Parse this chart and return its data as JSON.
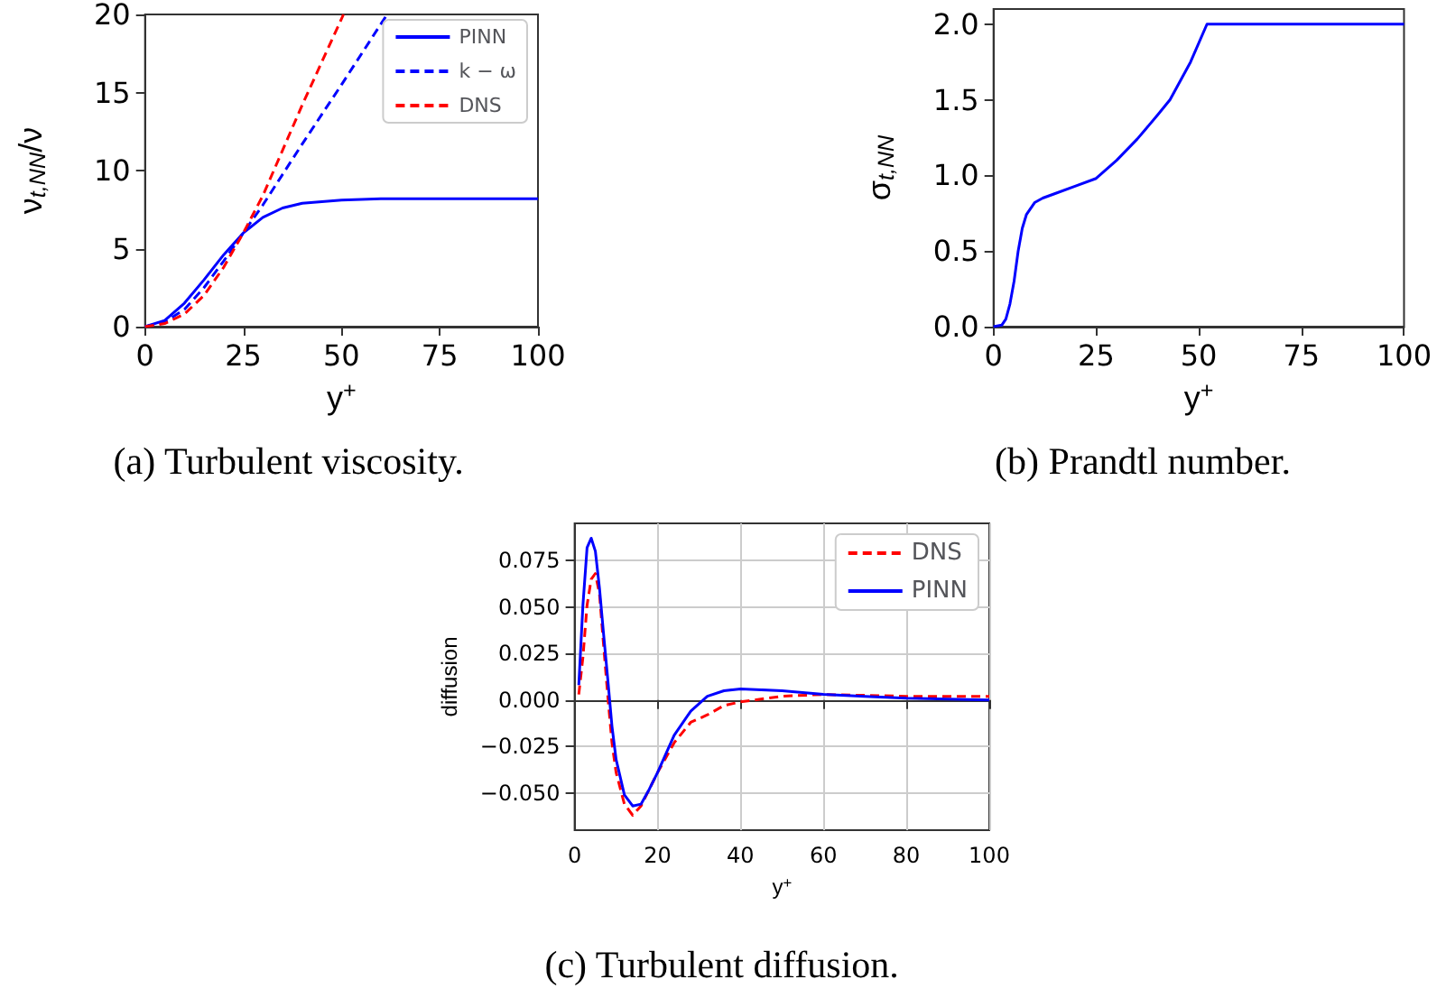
{
  "chart_data": [
    {
      "type": "line",
      "xlabel": "y$^{+}$",
      "ylabel": "ν$_{t,NN}$/ν",
      "xlim": [
        0,
        100
      ],
      "ylim": [
        0,
        20
      ],
      "xticks": [
        0,
        25,
        50,
        75,
        100
      ],
      "yticks": [
        0,
        5,
        10,
        15,
        20
      ],
      "grid": false,
      "legend": "top right",
      "marker": "none",
      "annotations": [
        "(a) Turbulent viscosity."
      ],
      "series": [
        {
          "name": "PINN",
          "color": "#0000ff",
          "line_style": "solid",
          "x": [
            0,
            5,
            10,
            15,
            20,
            25,
            30,
            35,
            40,
            50,
            60,
            75,
            100
          ],
          "values": [
            0,
            0.4,
            1.5,
            3,
            4.6,
            6,
            7,
            7.6,
            7.9,
            8.1,
            8.2,
            8.2,
            8.2
          ]
        },
        {
          "name": "k − ω",
          "color": "#0000ff",
          "line_style": "dashed",
          "x": [
            0,
            5,
            10,
            15,
            20,
            25,
            30,
            40,
            50,
            61.6
          ],
          "values": [
            0,
            0.3,
            1.1,
            2.5,
            4.2,
            6,
            7.8,
            11.7,
            15.5,
            20
          ]
        },
        {
          "name": "DNS",
          "color": "#ff0000",
          "line_style": "dashed",
          "x": [
            0,
            5,
            10,
            15,
            20,
            25,
            30,
            40,
            50.5
          ],
          "values": [
            0,
            0.2,
            0.8,
            2,
            3.8,
            6,
            8.4,
            14.2,
            20
          ]
        }
      ]
    },
    {
      "type": "line",
      "xlabel": "y$^{+}$",
      "ylabel": "σ$_{t,NN}$",
      "xlim": [
        0,
        100
      ],
      "ylim": [
        0,
        2.1
      ],
      "xticks": [
        0,
        25,
        50,
        75,
        100
      ],
      "yticks": [
        {
          "value": 0,
          "label": "0.0"
        },
        {
          "value": 0.5,
          "label": "0.5"
        },
        {
          "value": 1,
          "label": "1.0"
        },
        {
          "value": 1.5,
          "label": "1.5"
        },
        {
          "value": 2,
          "label": "2.0"
        }
      ],
      "grid": false,
      "marker": "none",
      "annotations": [
        "(b) Prandtl number."
      ],
      "series": [
        {
          "color": "#0000ff",
          "line_style": "solid",
          "x": [
            0,
            2,
            3,
            4,
            5,
            6,
            7,
            8,
            10,
            12,
            15,
            20,
            25,
            30,
            35,
            40,
            43,
            48,
            52,
            100
          ],
          "values": [
            0,
            0.01,
            0.05,
            0.15,
            0.3,
            0.5,
            0.65,
            0.74,
            0.82,
            0.85,
            0.88,
            0.93,
            0.98,
            1.1,
            1.24,
            1.4,
            1.5,
            1.75,
            2,
            2
          ]
        }
      ]
    },
    {
      "type": "line",
      "xlabel": "y$^{+}$",
      "ylabel": "diffusion",
      "xlim": [
        0,
        100
      ],
      "ylim": [
        -0.07,
        0.095
      ],
      "xticks": [
        0,
        20,
        40,
        60,
        80,
        100
      ],
      "yticks": [
        {
          "value": -0.05,
          "label": "−0.050"
        },
        {
          "value": -0.025,
          "label": "−0.025"
        },
        {
          "value": 0,
          "label": "0.000"
        },
        {
          "value": 0.025,
          "label": "0.025"
        },
        {
          "value": 0.05,
          "label": "0.050"
        },
        {
          "value": 0.075,
          "label": "0.075"
        }
      ],
      "grid": true,
      "legend": "top right",
      "marker": "none",
      "annotations": [
        "(c) Turbulent diffusion."
      ],
      "series": [
        {
          "name": "DNS",
          "color": "#ff0000",
          "line_style": "dashed",
          "x": [
            1,
            2,
            3,
            4,
            5,
            6,
            7,
            8,
            9,
            10,
            12,
            14,
            16,
            18,
            20,
            24,
            28,
            32,
            36,
            40,
            50,
            60,
            80,
            100
          ],
          "values": [
            0.003,
            0.023,
            0.051,
            0.065,
            0.068,
            0.057,
            0.029,
            0.002,
            -0.023,
            -0.039,
            -0.056,
            -0.062,
            -0.057,
            -0.048,
            -0.039,
            -0.023,
            -0.012,
            -0.008,
            -0.003,
            -0.001,
            0.002,
            0.003,
            0.002,
            0.002
          ]
        },
        {
          "name": "PINN",
          "color": "#0000ff",
          "line_style": "solid",
          "x": [
            1,
            2,
            3,
            4,
            5,
            6,
            7,
            8,
            9,
            10,
            12,
            14,
            16,
            18,
            20,
            24,
            28,
            32,
            36,
            40,
            50,
            60,
            70,
            80,
            100
          ],
          "values": [
            0.008,
            0.051,
            0.082,
            0.087,
            0.08,
            0.06,
            0.035,
            0.011,
            -0.014,
            -0.032,
            -0.051,
            -0.057,
            -0.056,
            -0.048,
            -0.039,
            -0.019,
            -0.006,
            0.002,
            0.005,
            0.006,
            0.005,
            0.003,
            0.002,
            0.001,
            0
          ]
        }
      ]
    }
  ]
}
